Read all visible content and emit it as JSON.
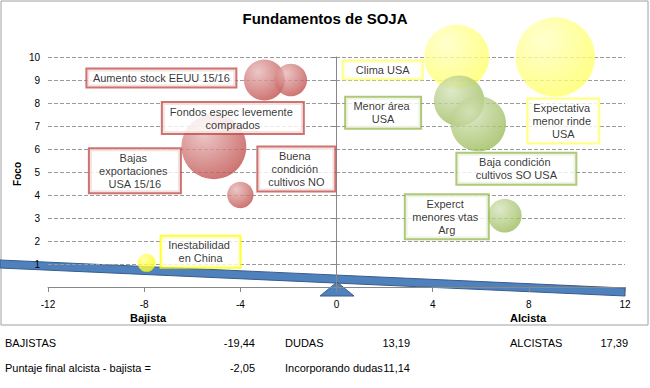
{
  "chart_data": {
    "type": "scatter",
    "title": "Fundamentos de SOJA",
    "ylabel": "Foco",
    "x_end_labels": [
      "Bajista",
      "Alcista"
    ],
    "xlim": [
      -12,
      12
    ],
    "xticks": [
      -12,
      -8,
      -4,
      0,
      4,
      8,
      12
    ],
    "ylim": [
      0,
      10
    ],
    "yticks": [
      1,
      2,
      3,
      4,
      5,
      6,
      7,
      8,
      9,
      10
    ],
    "grid": true,
    "points": [
      {
        "label": "Aumento stock EEUU 15/16",
        "x": -3,
        "y": 9,
        "size": 1.7,
        "color": "#c0504d"
      },
      {
        "label": "Fondos espec levemente comprados",
        "x": -1.9,
        "y": 9,
        "size": 1.35,
        "color": "#c0504d"
      },
      {
        "label": "Bajas exportaciones USA 15/16",
        "x": -5.1,
        "y": 6.1,
        "size": 2.7,
        "color": "#c0504d"
      },
      {
        "label": "Buena condición cultivos NO",
        "x": -4,
        "y": 4,
        "size": 1.1,
        "color": "#c0504d"
      },
      {
        "label": "Inestabilidad en China",
        "x": -7.9,
        "y": 1.05,
        "size": 0.75,
        "color": "#ffff00"
      },
      {
        "label": "Clima USA",
        "x": 5,
        "y": 10,
        "size": 2.7,
        "color": "#ffff66"
      },
      {
        "label": "Expectativa menor rinde USA",
        "x": 9.1,
        "y": 10,
        "size": 3.3,
        "color": "#ffff66"
      },
      {
        "label": "Menor área USA",
        "x": 5.1,
        "y": 8.1,
        "size": 2.1,
        "color": "#9bbb59"
      },
      {
        "label": "Baja condición cultivos SO USA",
        "x": 5.9,
        "y": 7.1,
        "size": 2.3,
        "color": "#9bbb59"
      },
      {
        "label": "Experct menores vtas Arg",
        "x": 7,
        "y": 3.1,
        "size": 1.4,
        "color": "#9bbb59"
      }
    ],
    "summary": [
      {
        "label": "BAJISTAS",
        "value": "-19,44"
      },
      {
        "label": "DUDAS",
        "value": "13,19"
      },
      {
        "label": "ALCISTAS",
        "value": "17,39"
      },
      {
        "label": "Puntaje final alcista - bajista =",
        "value": "-2,05"
      },
      {
        "label": "Incorporando dudas",
        "value": "11,14"
      }
    ]
  }
}
